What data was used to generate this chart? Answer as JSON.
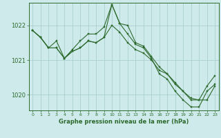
{
  "title": "Graphe pression niveau de la mer (hPa)",
  "background_color": "#ceeaea",
  "grid_color": "#aacece",
  "line_color": "#2d6a2d",
  "marker_color": "#2d6a2d",
  "axes_color": "#2d6a2d",
  "ylim": [
    1019.55,
    1022.65
  ],
  "yticks": [
    1020,
    1021,
    1022
  ],
  "xlim": [
    -0.5,
    23.5
  ],
  "xticks": [
    0,
    1,
    2,
    3,
    4,
    5,
    6,
    7,
    8,
    9,
    10,
    11,
    12,
    13,
    14,
    15,
    16,
    17,
    18,
    19,
    20,
    21,
    22,
    23
  ],
  "series": [
    [
      1021.85,
      1021.65,
      1021.35,
      1021.55,
      1021.05,
      1021.3,
      1021.55,
      1021.75,
      1021.75,
      1021.95,
      1022.6,
      1022.05,
      1022.0,
      1021.5,
      1021.4,
      1021.1,
      1020.8,
      1020.6,
      1020.35,
      1020.1,
      1019.9,
      1019.85,
      1019.85,
      1020.25
    ],
    [
      1021.85,
      1021.65,
      1021.35,
      1021.35,
      1021.05,
      1021.25,
      1021.35,
      1021.55,
      1021.5,
      1021.65,
      1022.6,
      1022.05,
      1021.75,
      1021.45,
      1021.35,
      1021.05,
      1020.6,
      1020.45,
      1020.1,
      1019.85,
      1019.65,
      1019.65,
      1020.1,
      1020.3
    ],
    [
      1021.85,
      1021.65,
      1021.35,
      1021.35,
      1021.05,
      1021.25,
      1021.35,
      1021.55,
      1021.5,
      1021.65,
      1022.0,
      1021.8,
      1021.5,
      1021.3,
      1021.2,
      1021.0,
      1020.7,
      1020.6,
      1020.3,
      1020.1,
      1019.85,
      1019.85,
      1020.25,
      1020.55
    ]
  ]
}
